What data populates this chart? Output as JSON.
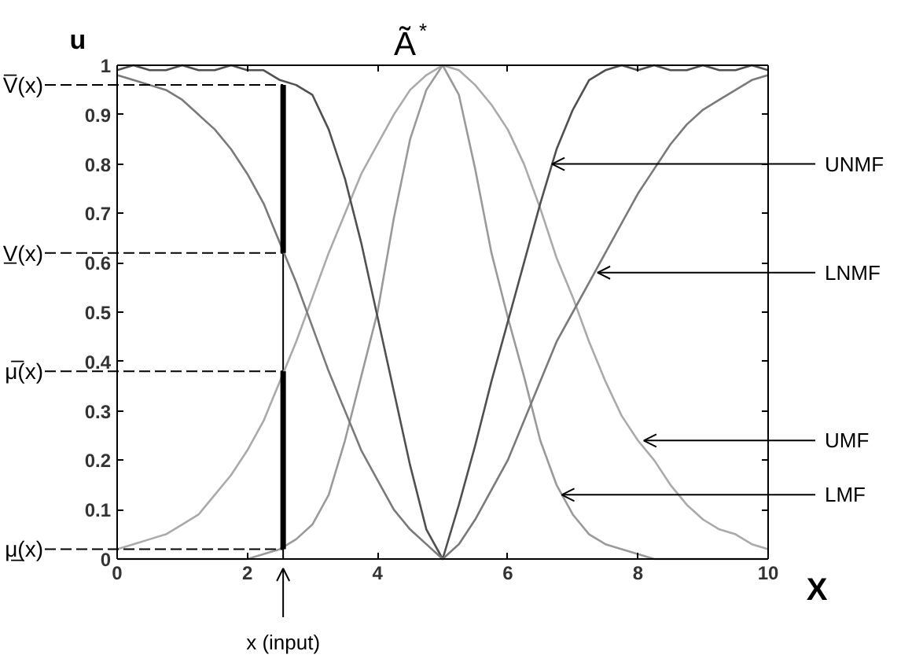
{
  "chart_data": {
    "type": "line",
    "title": "Ã$^{*}$",
    "xlabel": "X",
    "ylabel": "u",
    "x": [
      0,
      0.25,
      0.5,
      0.75,
      1,
      1.25,
      1.5,
      1.75,
      2,
      2.25,
      2.5,
      2.75,
      3,
      3.25,
      3.5,
      3.75,
      4,
      4.25,
      4.5,
      4.75,
      5,
      5.25,
      5.5,
      5.75,
      6,
      6.25,
      6.5,
      6.75,
      7,
      7.25,
      7.5,
      7.75,
      8,
      8.25,
      8.5,
      8.75,
      9,
      9.25,
      9.5,
      9.75,
      10
    ],
    "series": [
      {
        "color": "#aaaaaa",
        "values": [
          0.02,
          0.03,
          0.04,
          0.05,
          0.07,
          0.09,
          0.13,
          0.17,
          0.22,
          0.28,
          0.36,
          0.44,
          0.53,
          0.62,
          0.7,
          0.78,
          0.84,
          0.9,
          0.95,
          0.98,
          1.0,
          0.99,
          0.96,
          0.92,
          0.87,
          0.8,
          0.71,
          0.61,
          0.53,
          0.44,
          0.36,
          0.29,
          0.24,
          0.2,
          0.15,
          0.11,
          0.08,
          0.06,
          0.05,
          0.03,
          0.02
        ]
      },
      {
        "color": "#9a9a9a",
        "values": [
          0,
          0,
          0,
          0,
          0,
          0,
          0,
          0,
          0,
          0.01,
          0.02,
          0.04,
          0.07,
          0.13,
          0.24,
          0.37,
          0.5,
          0.69,
          0.85,
          0.95,
          1.0,
          0.94,
          0.79,
          0.62,
          0.49,
          0.37,
          0.24,
          0.15,
          0.09,
          0.05,
          0.03,
          0.02,
          0.01,
          0,
          0,
          0,
          0,
          0,
          0,
          0,
          0
        ]
      },
      {
        "color": "#505050",
        "values": [
          0.99,
          1.0,
          0.99,
          0.99,
          1.0,
          0.99,
          0.99,
          1.0,
          0.99,
          0.99,
          0.97,
          0.96,
          0.94,
          0.87,
          0.77,
          0.64,
          0.49,
          0.34,
          0.19,
          0.06,
          0,
          0.11,
          0.23,
          0.36,
          0.48,
          0.6,
          0.72,
          0.83,
          0.91,
          0.97,
          0.99,
          1.0,
          0.99,
          1.0,
          0.99,
          0.99,
          1.0,
          0.99,
          0.99,
          1.0,
          0.99
        ]
      },
      {
        "color": "#7a7a7a",
        "values": [
          0.98,
          0.97,
          0.96,
          0.95,
          0.93,
          0.9,
          0.87,
          0.83,
          0.78,
          0.72,
          0.64,
          0.56,
          0.47,
          0.38,
          0.3,
          0.22,
          0.16,
          0.1,
          0.06,
          0.03,
          0,
          0.03,
          0.08,
          0.14,
          0.2,
          0.28,
          0.36,
          0.44,
          0.5,
          0.56,
          0.62,
          0.68,
          0.74,
          0.79,
          0.84,
          0.88,
          0.91,
          0.93,
          0.95,
          0.97,
          0.98
        ]
      },
      {
        "type": "bar",
        "color": "#000000",
        "x": [
          2.55
        ],
        "base": [
          0.02
        ],
        "values": [
          0.36
        ]
      },
      {
        "type": "bar",
        "color": "#000000",
        "x": [
          2.55
        ],
        "base": [
          0.62
        ],
        "values": [
          0.34
        ]
      }
    ],
    "xlim": [
      0,
      10
    ],
    "ylim": [
      0,
      1
    ],
    "xticks": [
      0,
      2,
      4,
      6,
      8,
      10
    ],
    "yticks": [
      0,
      0.1,
      0.2,
      0.3,
      0.4,
      0.5,
      0.6,
      0.7,
      0.8,
      0.9,
      1
    ],
    "ref_lines": [
      {
        "axis": "x",
        "value": 2.55,
        "label": "x (input)"
      }
    ],
    "annotations": [
      {
        "text": "V̅(x)",
        "x": 2.55,
        "y": 0.96
      },
      {
        "text": "V̲(x)",
        "x": 2.55,
        "y": 0.62
      },
      {
        "text": "μ̅(x)",
        "x": 2.55,
        "y": 0.38
      },
      {
        "text": "μ̲(x)",
        "x": 2.55,
        "y": 0.02
      },
      {
        "text": "UNMF",
        "x": 6.68,
        "y": 0.8
      },
      {
        "text": "LNMF",
        "x": 7.38,
        "y": 0.58
      },
      {
        "text": "UMF",
        "x": 8.09,
        "y": 0.24
      },
      {
        "text": "LMF",
        "x": 6.83,
        "y": 0.13
      }
    ],
    "grid": false,
    "line_style": "solid"
  }
}
